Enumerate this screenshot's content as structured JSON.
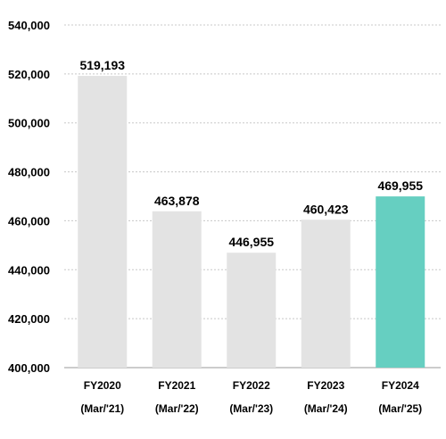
{
  "chart_data": {
    "type": "bar",
    "categories": [
      "FY2020",
      "FY2021",
      "FY2022",
      "FY2023",
      "FY2024"
    ],
    "category_sublabels": [
      "(Mar/'21)",
      "(Mar/'22)",
      "(Mar/'23)",
      "(Mar/'24)",
      "(Mar/'25)"
    ],
    "values": [
      519193,
      463878,
      446955,
      460423,
      469955
    ],
    "data_labels": [
      "519,193",
      "463,878",
      "446,955",
      "460,423",
      "469,955"
    ],
    "ylim": [
      400000,
      540000
    ],
    "y_ticks": [
      400000,
      420000,
      440000,
      460000,
      480000,
      500000,
      520000,
      540000
    ],
    "y_tick_labels": [
      "400,000",
      "420,000",
      "440,000",
      "460,000",
      "480,000",
      "500,000",
      "520,000",
      "540,000"
    ],
    "title": "",
    "xlabel": "",
    "ylabel": "",
    "grid": "horizontal-dashed",
    "legend": "none",
    "colors": {
      "default_bar": "#e3e3e3",
      "highlight_bar": "#66cfc1"
    },
    "highlight_index": 4
  }
}
